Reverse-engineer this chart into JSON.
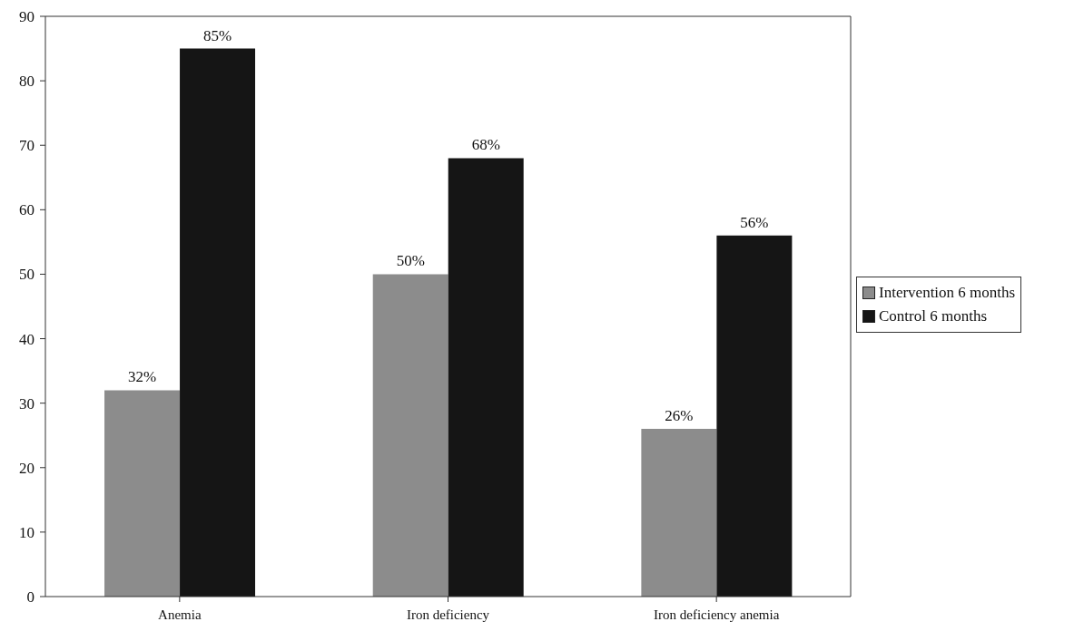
{
  "chart_data": {
    "type": "bar",
    "categories": [
      "Anemia",
      "Iron deficiency",
      "Iron deficiency anemia"
    ],
    "series": [
      {
        "name": "Intervention 6 months",
        "color": "#8c8c8c",
        "values": [
          32,
          50,
          26
        ],
        "value_labels": [
          "32%",
          "50%",
          "26%"
        ]
      },
      {
        "name": "Control 6 months",
        "color": "#151515",
        "values": [
          85,
          68,
          56
        ],
        "value_labels": [
          "85%",
          "68%",
          "56%"
        ]
      }
    ],
    "ylim": [
      0,
      90
    ],
    "yticks": [
      0,
      10,
      20,
      30,
      40,
      50,
      60,
      70,
      80,
      90
    ],
    "grid": false,
    "legend": "right"
  }
}
